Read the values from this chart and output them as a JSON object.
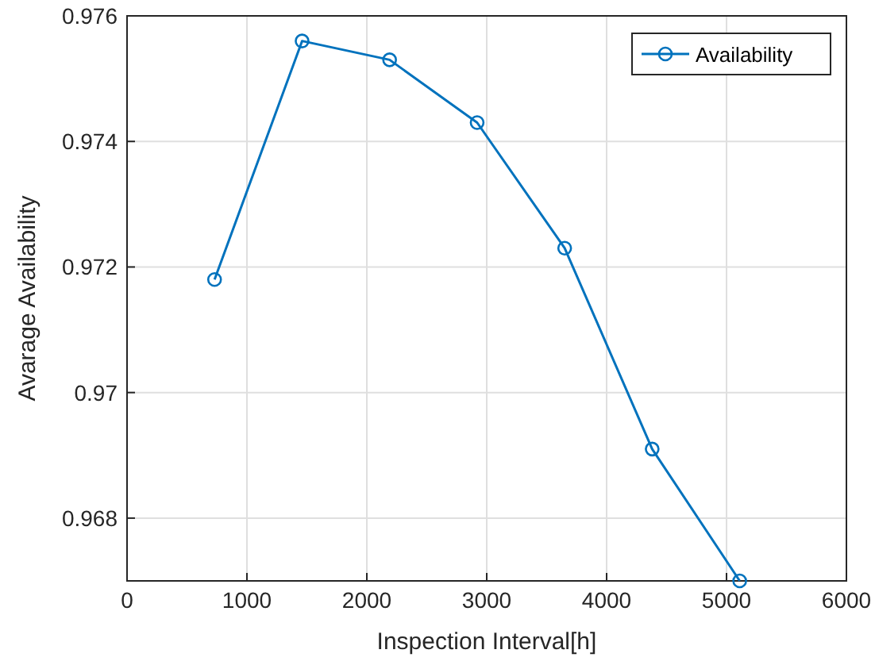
{
  "chart_data": {
    "type": "line",
    "xlabel": "Inspection Interval[h]",
    "ylabel": "Avarage Availability",
    "x": [
      730,
      1460,
      2190,
      2920,
      3650,
      4380,
      5110
    ],
    "series": [
      {
        "name": "Availability",
        "color": "#0072bd",
        "values": [
          0.9718,
          0.9756,
          0.9753,
          0.9743,
          0.9723,
          0.9691,
          0.967
        ]
      }
    ],
    "xlim": [
      0,
      6000
    ],
    "xticks": [
      0,
      1000,
      2000,
      3000,
      4000,
      5000,
      6000
    ],
    "ylim": [
      0.967,
      0.976
    ],
    "yticks": [
      0.968,
      0.97,
      0.972,
      0.974,
      0.976
    ],
    "grid": true,
    "legend": "top right",
    "marker": "circle",
    "line_style": "solid"
  }
}
